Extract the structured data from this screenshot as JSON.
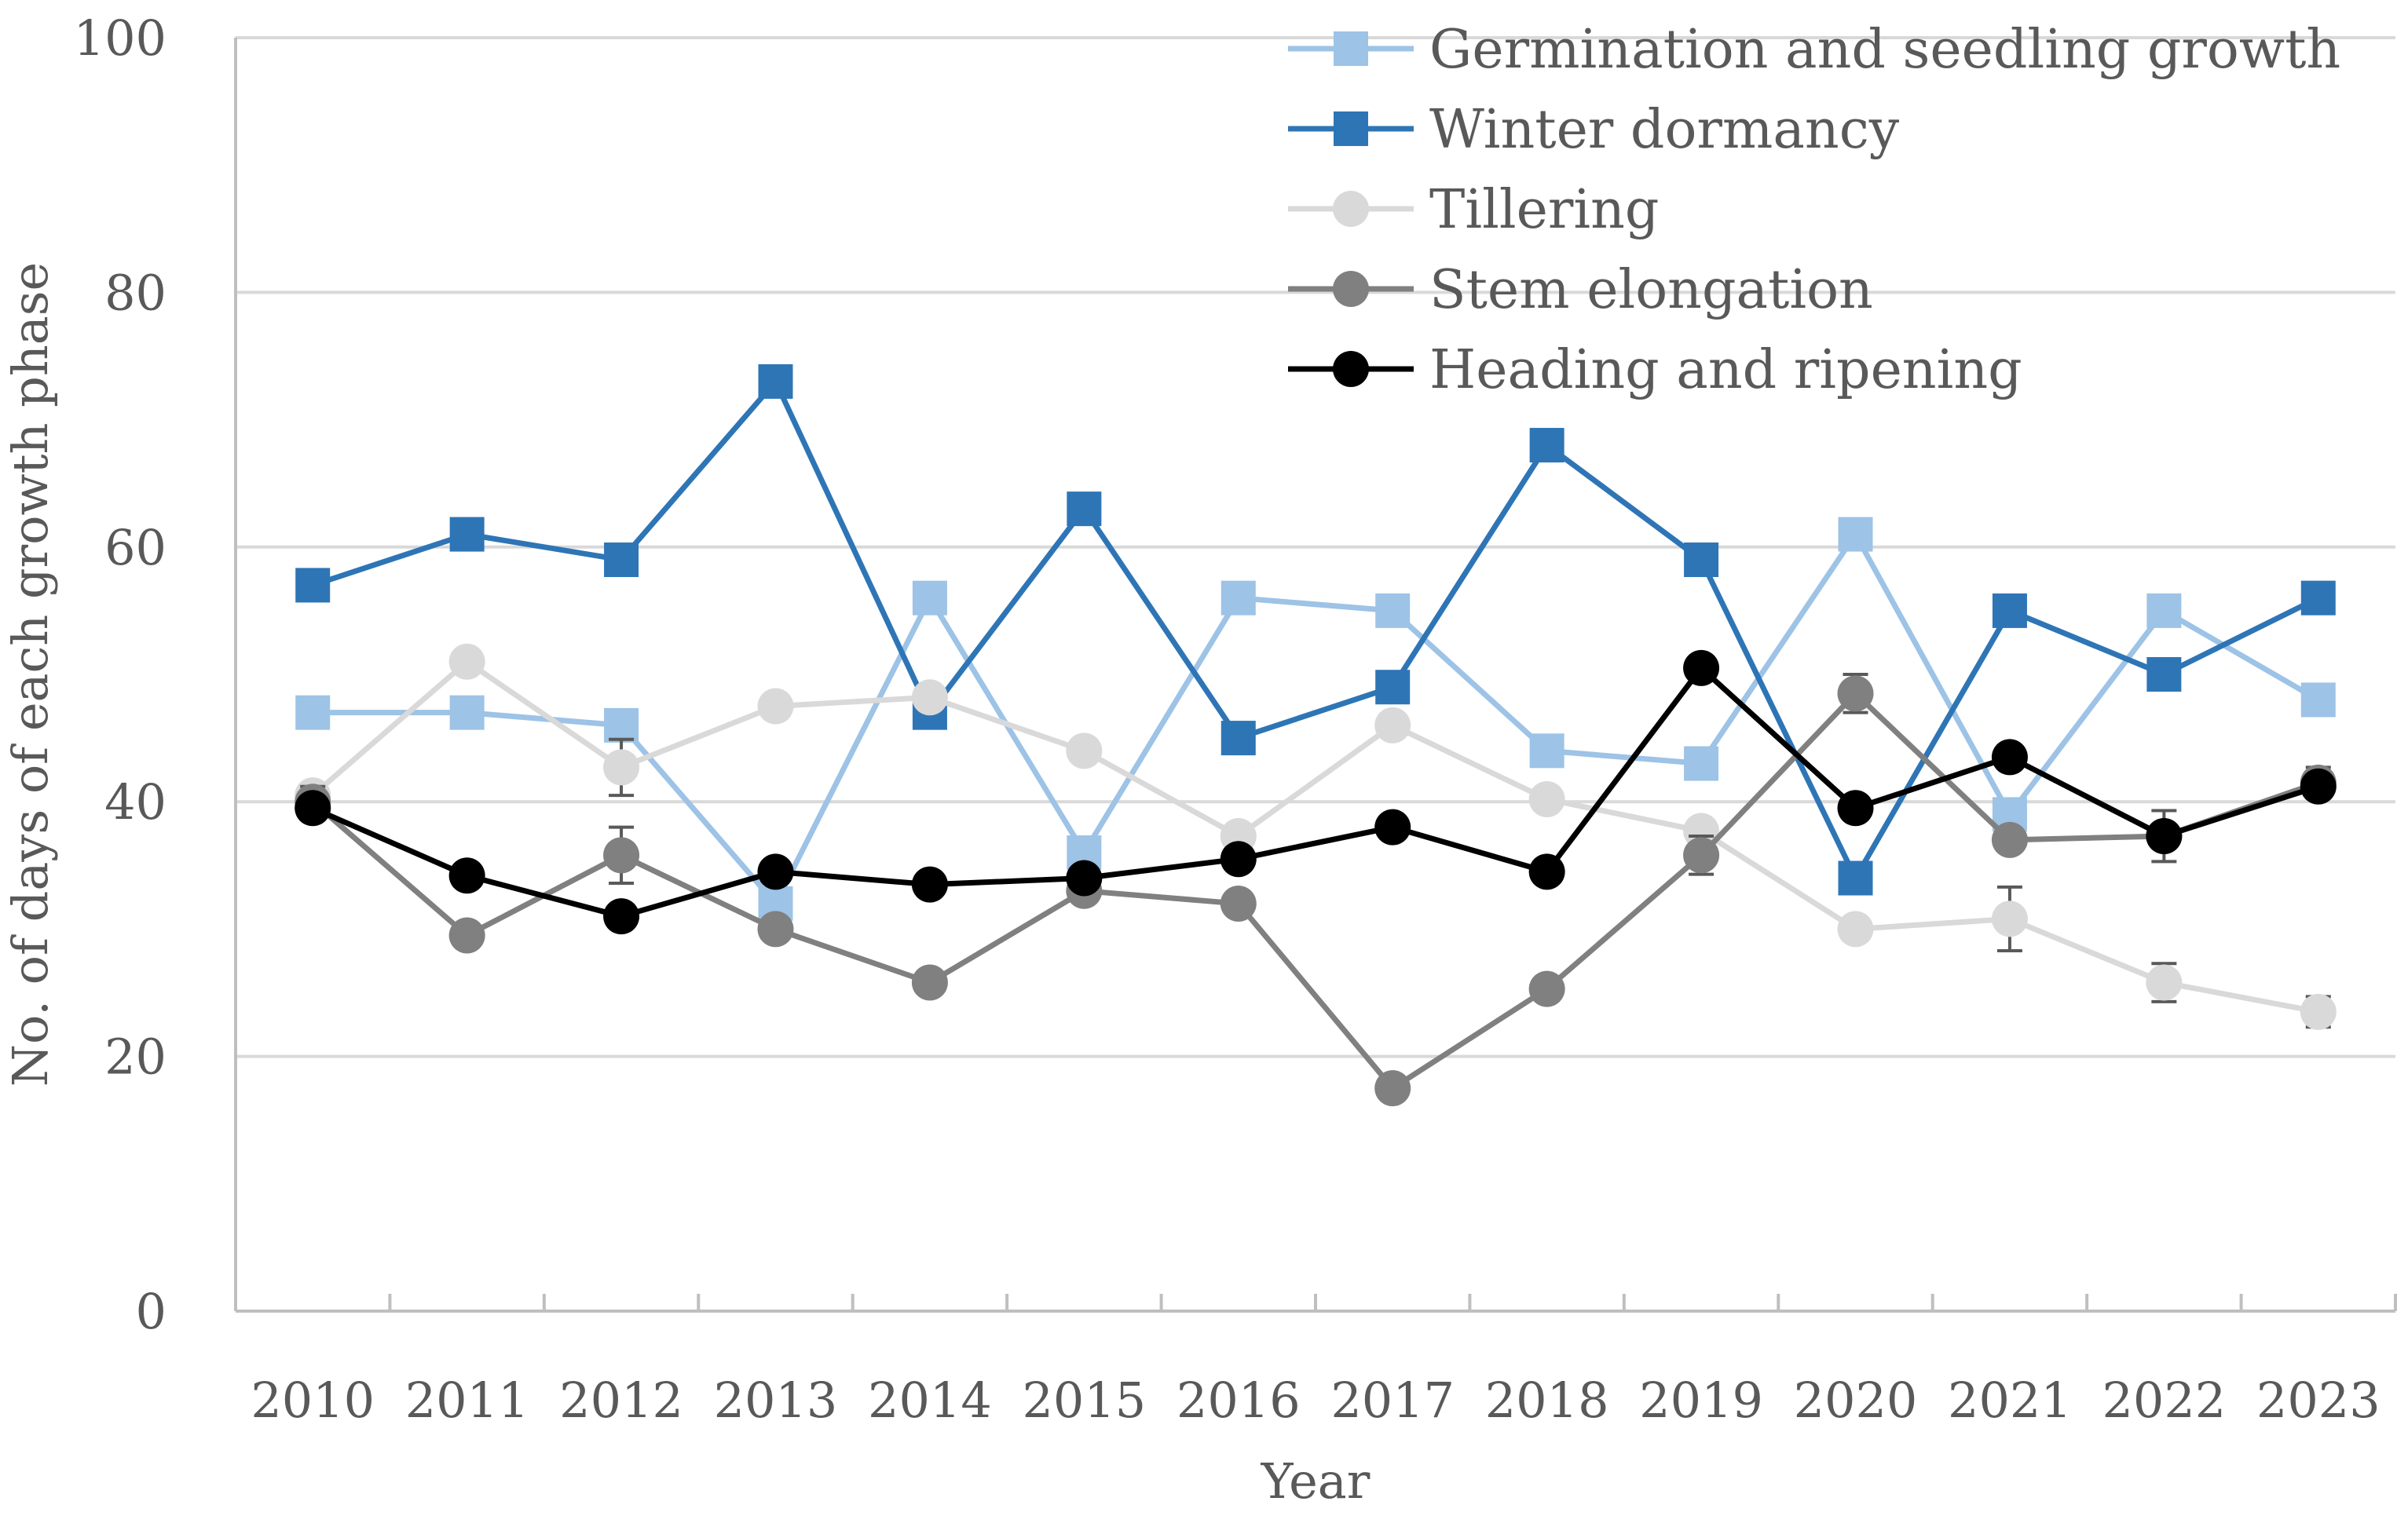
{
  "chart_data": {
    "type": "line",
    "title": "",
    "xlabel": "Year",
    "ylabel": "No. of days of each growth phase",
    "ylim": [
      0,
      100
    ],
    "yticks": [
      0,
      20,
      40,
      60,
      80,
      100
    ],
    "grid": "horizontal",
    "legend_position": "top-right",
    "categories": [
      "2010",
      "2011",
      "2012",
      "2013",
      "2014",
      "2015",
      "2016",
      "2017",
      "2018",
      "2019",
      "2020",
      "2021",
      "2022",
      "2023"
    ],
    "series": [
      {
        "name": "Germination and seedling growth",
        "marker": "square",
        "color": "#9dc3e6",
        "values": [
          47,
          47,
          46,
          32,
          56,
          36,
          56,
          55,
          44,
          43,
          61,
          39,
          55,
          48
        ]
      },
      {
        "name": "Winter dormancy",
        "marker": "square",
        "color": "#2e75b6",
        "values": [
          57,
          61,
          59,
          73,
          47,
          63,
          45,
          49,
          68,
          59,
          34,
          55,
          50,
          56
        ]
      },
      {
        "name": "Tillering",
        "marker": "circle",
        "color": "#d9d9d9",
        "values": [
          40.5,
          51,
          42.7,
          47.5,
          48.2,
          44,
          37.3,
          46,
          40.2,
          37.7,
          30,
          30.8,
          25.8,
          23.5
        ],
        "errors": [
          0,
          0,
          2.2,
          0,
          0,
          0,
          0,
          0,
          0,
          0,
          0,
          2.5,
          1.5,
          1.2
        ]
      },
      {
        "name": "Stem elongation",
        "marker": "circle",
        "color": "#808080",
        "values": [
          40,
          29.5,
          35.8,
          30,
          25.8,
          33,
          32,
          17.5,
          25.3,
          35.8,
          48.5,
          37,
          37.3,
          41.5
        ],
        "errors": [
          1.2,
          0,
          2.2,
          0,
          0,
          0,
          0,
          0,
          0,
          1.5,
          1.5,
          0,
          2.0,
          1.2
        ]
      },
      {
        "name": "Heading and ripening",
        "marker": "circle",
        "color": "#000000",
        "values": [
          39.5,
          34.2,
          31,
          34.5,
          33.5,
          34,
          35.5,
          38,
          34.5,
          50.5,
          39.5,
          43.5,
          37.3,
          41.2
        ]
      }
    ]
  }
}
